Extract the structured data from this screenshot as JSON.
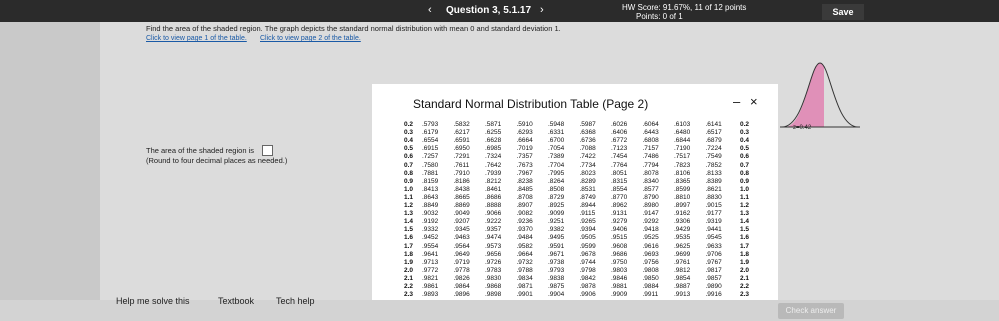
{
  "header": {
    "question": "Question 3, 5.1.17",
    "hw_score": "HW Score: 91.67%, 11 of 12 points",
    "points": "Points: 0 of 1",
    "save": "Save"
  },
  "question": {
    "prompt": "Find the area of the shaded region. The graph depicts the standard normal distribution with mean 0 and standard deviation 1.",
    "link1": "Click to view page 1 of the table.",
    "link2": "Click to view page 2 of the table.",
    "answer_prefix": "The area of the shaded region is",
    "instruction": "(Round to four decimal places as needed.)",
    "graph_label": "z=0.42"
  },
  "dialog": {
    "title": "Standard Normal Distribution Table (Page 2)",
    "rows": [
      {
        "z": "0.2",
        "values": [
          ".5793",
          ".5832",
          ".5871",
          ".5910",
          ".5948",
          ".5987",
          ".6026",
          ".6064",
          ".6103",
          ".6141"
        ]
      },
      {
        "z": "0.3",
        "values": [
          ".6179",
          ".6217",
          ".6255",
          ".6293",
          ".6331",
          ".6368",
          ".6406",
          ".6443",
          ".6480",
          ".6517"
        ]
      },
      {
        "z": "0.4",
        "values": [
          ".6554",
          ".6591",
          ".6628",
          ".6664",
          ".6700",
          ".6736",
          ".6772",
          ".6808",
          ".6844",
          ".6879"
        ]
      },
      {
        "z": "0.5",
        "values": [
          ".6915",
          ".6950",
          ".6985",
          ".7019",
          ".7054",
          ".7088",
          ".7123",
          ".7157",
          ".7190",
          ".7224"
        ]
      },
      {
        "z": "0.6",
        "values": [
          ".7257",
          ".7291",
          ".7324",
          ".7357",
          ".7389",
          ".7422",
          ".7454",
          ".7486",
          ".7517",
          ".7549"
        ]
      },
      {
        "z": "0.7",
        "values": [
          ".7580",
          ".7611",
          ".7642",
          ".7673",
          ".7704",
          ".7734",
          ".7764",
          ".7794",
          ".7823",
          ".7852"
        ]
      },
      {
        "z": "0.8",
        "values": [
          ".7881",
          ".7910",
          ".7939",
          ".7967",
          ".7995",
          ".8023",
          ".8051",
          ".8078",
          ".8106",
          ".8133"
        ]
      },
      {
        "z": "0.9",
        "values": [
          ".8159",
          ".8186",
          ".8212",
          ".8238",
          ".8264",
          ".8289",
          ".8315",
          ".8340",
          ".8365",
          ".8389"
        ]
      },
      {
        "z": "1.0",
        "values": [
          ".8413",
          ".8438",
          ".8461",
          ".8485",
          ".8508",
          ".8531",
          ".8554",
          ".8577",
          ".8599",
          ".8621"
        ]
      },
      {
        "z": "1.1",
        "values": [
          ".8643",
          ".8665",
          ".8686",
          ".8708",
          ".8729",
          ".8749",
          ".8770",
          ".8790",
          ".8810",
          ".8830"
        ]
      },
      {
        "z": "1.2",
        "values": [
          ".8849",
          ".8869",
          ".8888",
          ".8907",
          ".8925",
          ".8944",
          ".8962",
          ".8980",
          ".8997",
          ".9015"
        ]
      },
      {
        "z": "1.3",
        "values": [
          ".9032",
          ".9049",
          ".9066",
          ".9082",
          ".9099",
          ".9115",
          ".9131",
          ".9147",
          ".9162",
          ".9177"
        ]
      },
      {
        "z": "1.4",
        "values": [
          ".9192",
          ".9207",
          ".9222",
          ".9236",
          ".9251",
          ".9265",
          ".9279",
          ".9292",
          ".9306",
          ".9319"
        ]
      },
      {
        "z": "1.5",
        "values": [
          ".9332",
          ".9345",
          ".9357",
          ".9370",
          ".9382",
          ".9394",
          ".9406",
          ".9418",
          ".9429",
          ".9441"
        ]
      },
      {
        "z": "1.6",
        "values": [
          ".9452",
          ".9463",
          ".9474",
          ".9484",
          ".9495",
          ".9505",
          ".9515",
          ".9525",
          ".9535",
          ".9545"
        ]
      },
      {
        "z": "1.7",
        "values": [
          ".9554",
          ".9564",
          ".9573",
          ".9582",
          ".9591",
          ".9599",
          ".9608",
          ".9616",
          ".9625",
          ".9633"
        ]
      },
      {
        "z": "1.8",
        "values": [
          ".9641",
          ".9649",
          ".9656",
          ".9664",
          ".9671",
          ".9678",
          ".9686",
          ".9693",
          ".9699",
          ".9706"
        ]
      },
      {
        "z": "1.9",
        "values": [
          ".9713",
          ".9719",
          ".9726",
          ".9732",
          ".9738",
          ".9744",
          ".9750",
          ".9756",
          ".9761",
          ".9767"
        ]
      },
      {
        "z": "2.0",
        "values": [
          ".9772",
          ".9778",
          ".9783",
          ".9788",
          ".9793",
          ".9798",
          ".9803",
          ".9808",
          ".9812",
          ".9817"
        ]
      },
      {
        "z": "2.1",
        "values": [
          ".9821",
          ".9826",
          ".9830",
          ".9834",
          ".9838",
          ".9842",
          ".9846",
          ".9850",
          ".9854",
          ".9857"
        ]
      },
      {
        "z": "2.2",
        "values": [
          ".9861",
          ".9864",
          ".9868",
          ".9871",
          ".9875",
          ".9878",
          ".9881",
          ".9884",
          ".9887",
          ".9890"
        ]
      },
      {
        "z": "2.3",
        "values": [
          ".9893",
          ".9896",
          ".9898",
          ".9901",
          ".9904",
          ".9906",
          ".9909",
          ".9911",
          ".9913",
          ".9916"
        ]
      }
    ]
  },
  "footer": {
    "help": "Help me solve this",
    "textbook": "Textbook",
    "tech_help": "Tech help",
    "check": "Check answer"
  }
}
